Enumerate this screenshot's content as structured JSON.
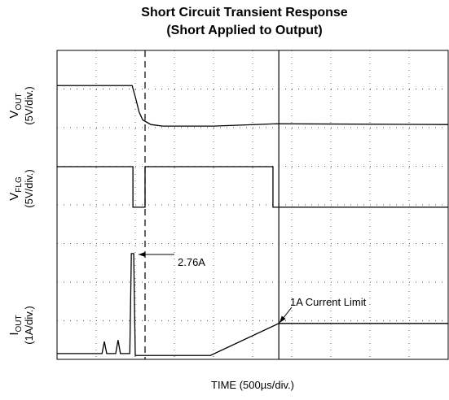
{
  "chart_data": {
    "type": "line",
    "title": [
      "Short Circuit Transient Response",
      "(Short Applied to Output)"
    ],
    "xlabel": "TIME (500µs/div.)",
    "y_labels": [
      {
        "main": "V",
        "sub": "OUT",
        "scale": "(5V/div.)"
      },
      {
        "main": "V",
        "sub": "FLG",
        "scale": "(5V/div.)"
      },
      {
        "main": "I",
        "sub": "OUT",
        "scale": "(1A/div.)"
      }
    ],
    "xlim": [
      0,
      10
    ],
    "ylim": [
      0,
      8
    ],
    "xticks": [
      0,
      1,
      2,
      3,
      4,
      5,
      6,
      7,
      8,
      9,
      10
    ],
    "yticks": [
      0,
      1,
      2,
      3,
      4,
      5,
      6,
      7,
      8
    ],
    "grid": true,
    "series": [
      {
        "name": "VOUT",
        "color": "#000000",
        "x": [
          0,
          1.92,
          2.0,
          2.1,
          2.19,
          2.4,
          2.7,
          4.0,
          5.6,
          10
        ],
        "values": [
          7.09,
          7.09,
          6.8,
          6.4,
          6.2,
          6.08,
          6.04,
          6.04,
          6.1,
          6.08
        ]
      },
      {
        "name": "VFLG",
        "color": "#000000",
        "x": [
          0,
          1.94,
          1.94,
          2.25,
          2.25,
          5.52,
          5.52,
          10
        ],
        "values": [
          4.99,
          4.99,
          3.94,
          3.94,
          4.99,
          4.99,
          3.94,
          3.94
        ]
      },
      {
        "name": "IOUT",
        "color": "#000000",
        "x": [
          0,
          1.15,
          1.21,
          1.27,
          1.5,
          1.56,
          1.62,
          1.86,
          1.9,
          1.96,
          2.0,
          3.92,
          5.67,
          10
        ],
        "values": [
          0.15,
          0.15,
          0.46,
          0.15,
          0.15,
          0.5,
          0.15,
          0.15,
          2.74,
          2.74,
          0.1,
          0.1,
          0.93,
          0.93
        ]
      }
    ],
    "cursors": [
      2.25,
      5.67
    ],
    "annotations": [
      "2.76A",
      "1A Current Limit"
    ]
  }
}
